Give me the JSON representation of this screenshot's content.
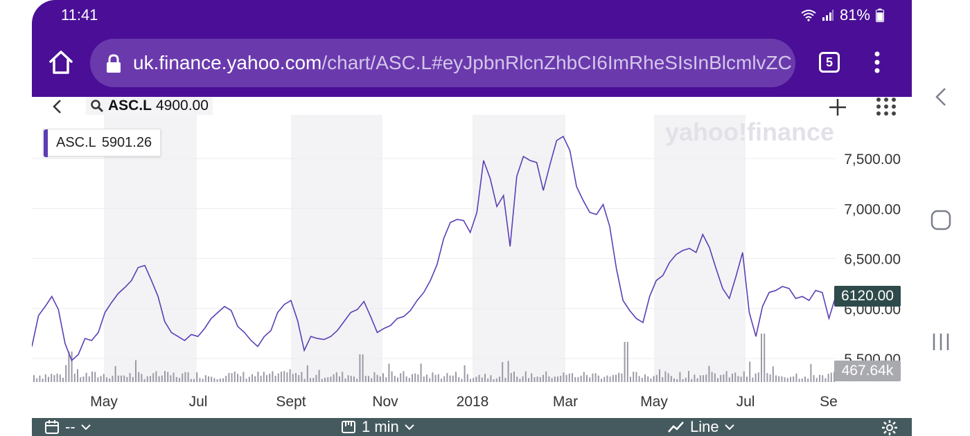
{
  "status_bar": {
    "time": "11:41",
    "battery": "81%",
    "icons": [
      "wifi-icon",
      "signal-icon",
      "battery-icon"
    ]
  },
  "browser": {
    "url_domain": "uk.finance.yahoo.com",
    "url_path": "/chart/ASC.L#eyJpbnRlcnZhbCI6ImRheSIsInBlcmlvZC",
    "tab_count": "5",
    "colors": {
      "bar": "#4a0f96",
      "pill": "#6a3aad"
    }
  },
  "chart_header": {
    "symbol": "ASC.L",
    "price": "4900.00"
  },
  "legend": {
    "symbol": "ASC.L",
    "value": "5901.26"
  },
  "watermark": "yahoo!finance",
  "price_tag": "6120.00",
  "volume_tag": "467.64k",
  "toolbar": {
    "date_value": "--",
    "interval": "1 min",
    "chart_type": "Line"
  },
  "chart_data": {
    "type": "line",
    "series": [
      {
        "values": [
          5620,
          5930,
          6020,
          6120,
          5990,
          5650,
          5480,
          5540,
          5700,
          5680,
          5760,
          5960,
          6060,
          6150,
          6210,
          6280,
          6410,
          6430,
          6280,
          6120,
          5870,
          5760,
          5720,
          5680,
          5740,
          5720,
          5800,
          5900,
          5960,
          6020,
          5980,
          5820,
          5760,
          5680,
          5620,
          5720,
          5780,
          5960,
          6040,
          6080,
          5880,
          5580,
          5720,
          5700,
          5690,
          5720,
          5780,
          5870,
          5960,
          5990,
          6070,
          5920,
          5760,
          5800,
          5830,
          5900,
          5920,
          5980,
          6080,
          6160,
          6280,
          6440,
          6700,
          6860,
          6890,
          6880,
          6760,
          6960,
          7480,
          7300,
          7020,
          7130,
          6620,
          7320,
          7520,
          7480,
          7460,
          7180,
          7440,
          7680,
          7720,
          7580,
          7220,
          7080,
          6960,
          6940,
          7040,
          6820,
          6400,
          6080,
          5980,
          5900,
          5860,
          6120,
          6280,
          6330,
          6460,
          6540,
          6580,
          6600,
          6560,
          6740,
          6610,
          6400,
          6200,
          6100,
          6320,
          6560,
          5960,
          5720,
          6020,
          6160,
          6180,
          6220,
          6200,
          6100,
          6120,
          6080,
          6180,
          6160,
          5900,
          6120
        ],
        "volume_note": ""
      }
    ],
    "x_tick_labels": [
      "May",
      "Jul",
      "Sept",
      "Nov",
      "2018",
      "Mar",
      "May",
      "Jul",
      "Se"
    ],
    "y_tick_labels": [
      "7,500.00",
      "7,000.00",
      "6,500.00",
      "6,000.00",
      "5,500.00"
    ],
    "ylim": [
      5400,
      7900
    ],
    "title": "",
    "xlabel": "",
    "ylabel": "",
    "grid": true,
    "line_color": "#5b3db5",
    "band_color": "#f3f3f5"
  }
}
